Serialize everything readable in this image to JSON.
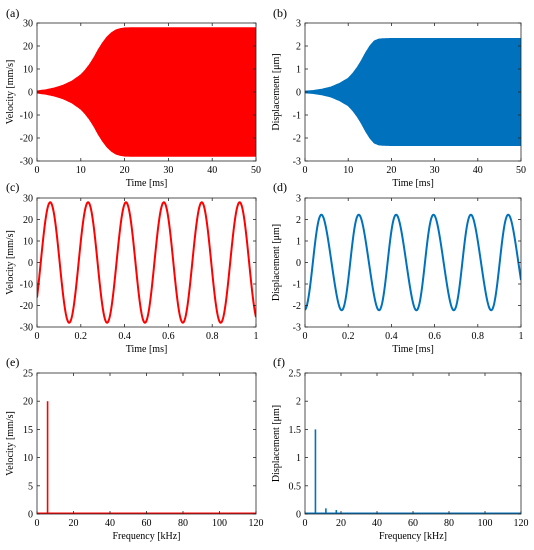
{
  "chart_data": [
    {
      "panel": "(a)",
      "type": "area",
      "xlabel": "Time [ms]",
      "ylabel": "Velocity [mm/s]",
      "xlim": [
        0,
        50
      ],
      "ylim": [
        -30,
        30
      ],
      "xticks": [
        0,
        10,
        20,
        30,
        40,
        50
      ],
      "yticks": [
        -30,
        -20,
        -10,
        0,
        10,
        20,
        30
      ],
      "color": "#ff0000",
      "series": [
        {
          "kind": "envelope",
          "x": [
            0,
            2,
            4,
            6,
            8,
            10,
            11,
            12,
            13,
            14,
            15,
            16,
            17,
            18,
            19,
            20,
            22,
            25,
            30,
            40,
            50
          ],
          "upper": [
            0.5,
            1,
            1.8,
            3,
            4.8,
            7.5,
            9.5,
            12,
            15,
            18.5,
            21.5,
            24,
            25.8,
            27,
            27.6,
            27.9,
            28,
            28,
            28,
            28,
            28
          ],
          "lower": [
            -0.5,
            -1,
            -1.8,
            -3,
            -4.8,
            -7.5,
            -9.5,
            -12,
            -15,
            -18.5,
            -21.5,
            -24,
            -25.8,
            -27,
            -27.6,
            -27.9,
            -28,
            -28,
            -28,
            -28,
            -28
          ]
        }
      ]
    },
    {
      "panel": "(b)",
      "type": "area",
      "xlabel": "Time [ms]",
      "ylabel": "Displacement [μm]",
      "xlim": [
        0,
        50
      ],
      "ylim": [
        -3,
        3
      ],
      "xticks": [
        0,
        10,
        20,
        30,
        40,
        50
      ],
      "yticks": [
        -3,
        -2,
        -1,
        0,
        1,
        2,
        3
      ],
      "color": "#0072bd",
      "series": [
        {
          "kind": "envelope",
          "x": [
            0,
            2,
            4,
            6,
            8,
            10,
            11,
            12,
            13,
            14,
            15,
            16,
            17,
            18,
            20,
            25,
            30,
            40,
            50
          ],
          "upper": [
            0.04,
            0.07,
            0.13,
            0.22,
            0.38,
            0.6,
            0.8,
            1.05,
            1.35,
            1.7,
            2.0,
            2.22,
            2.3,
            2.32,
            2.33,
            2.33,
            2.33,
            2.33,
            2.33
          ],
          "lower": [
            -0.04,
            -0.07,
            -0.13,
            -0.22,
            -0.38,
            -0.6,
            -0.8,
            -1.05,
            -1.35,
            -1.7,
            -2.0,
            -2.22,
            -2.3,
            -2.32,
            -2.33,
            -2.33,
            -2.33,
            -2.33,
            -2.33
          ]
        }
      ]
    },
    {
      "panel": "(c)",
      "type": "line",
      "xlabel": "Time [ms]",
      "ylabel": "Velocity [mm/s]",
      "xlim": [
        0,
        1
      ],
      "ylim": [
        -30,
        30
      ],
      "xticks": [
        0,
        0.2,
        0.4,
        0.6,
        0.8,
        1
      ],
      "yticks": [
        -30,
        -20,
        -10,
        0,
        10,
        20,
        30
      ],
      "color": "#ff0000",
      "series": [
        {
          "kind": "sine",
          "amplitude": 28,
          "frequency_khz": 5.78,
          "phase": -0.62
        }
      ]
    },
    {
      "panel": "(d)",
      "type": "line",
      "xlabel": "Time [ms]",
      "ylabel": "Displacement [μm]",
      "xlim": [
        0,
        1
      ],
      "ylim": [
        -3,
        3
      ],
      "xticks": [
        0,
        0.2,
        0.4,
        0.6,
        0.8,
        1
      ],
      "yticks": [
        -3,
        -2,
        -1,
        0,
        1,
        2,
        3
      ],
      "color": "#0072bd",
      "series": [
        {
          "kind": "sine",
          "amplitude": 2.2,
          "frequency_khz": 5.78,
          "phase": -1.32,
          "harmonic2_ratio": 0.07
        }
      ]
    },
    {
      "panel": "(e)",
      "type": "bar",
      "xlabel": "Frequency [kHz]",
      "ylabel": "Velocity [mm/s]",
      "xlim": [
        0,
        120
      ],
      "ylim": [
        0,
        25
      ],
      "xticks": [
        0,
        20,
        40,
        60,
        80,
        100,
        120
      ],
      "yticks": [
        0,
        5,
        10,
        15,
        20,
        25
      ],
      "color": "#ff0000",
      "series": [
        {
          "kind": "spectrum",
          "x": [
            5.8
          ],
          "values": [
            20
          ]
        }
      ]
    },
    {
      "panel": "(f)",
      "type": "bar",
      "xlabel": "Frequency [kHz]",
      "ylabel": "Displacement [μm]",
      "xlim": [
        0,
        120
      ],
      "ylim": [
        0,
        2.5
      ],
      "xticks": [
        0,
        20,
        40,
        60,
        80,
        100,
        120
      ],
      "yticks": [
        0,
        0.5,
        1,
        1.5,
        2,
        2.5
      ],
      "color": "#0072bd",
      "series": [
        {
          "kind": "spectrum",
          "x": [
            5.8,
            11.6,
            17.4
          ],
          "values": [
            1.5,
            0.1,
            0.07
          ]
        }
      ]
    }
  ]
}
